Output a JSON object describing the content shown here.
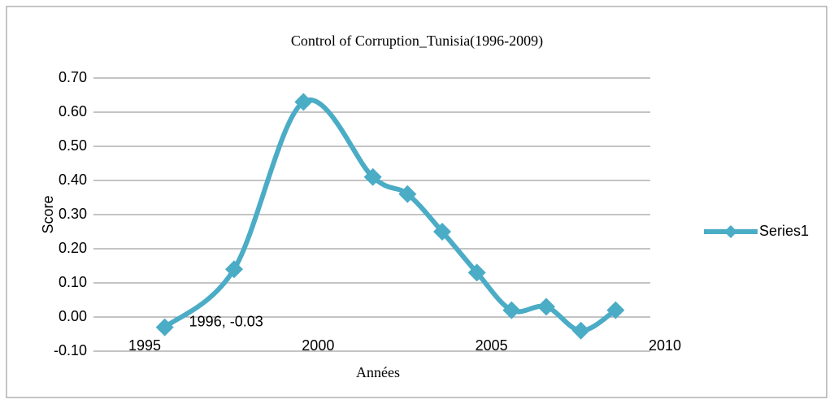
{
  "chart_data": {
    "type": "line",
    "title": "Control of Corruption_Tunisia(1996-2009)",
    "x_label": "Années",
    "y_label": "Score",
    "x": [
      1996,
      1998,
      2000,
      2002,
      2003,
      2004,
      2005,
      2006,
      2007,
      2008,
      2009
    ],
    "series": [
      {
        "name": "Series1",
        "color": "#4bacc6",
        "values": [
          -0.03,
          0.14,
          0.63,
          0.41,
          0.36,
          0.25,
          0.13,
          0.02,
          0.03,
          -0.04,
          0.02
        ],
        "value_labels": [
          "1996, -0.03",
          null,
          null,
          null,
          null,
          null,
          null,
          null,
          null,
          null,
          null
        ]
      }
    ],
    "xlim": [
      1995,
      2010
    ],
    "xticks": [
      1995,
      2000,
      2005,
      2010
    ],
    "ylim": [
      -0.1,
      0.7
    ],
    "yticks": [
      {
        "value": -0.1,
        "label": "-0.10"
      },
      {
        "value": 0,
        "label": "0.00"
      },
      {
        "value": 0.1,
        "label": "0.10"
      },
      {
        "value": 0.2,
        "label": "0.20"
      },
      {
        "value": 0.3,
        "label": "0.30"
      },
      {
        "value": 0.4,
        "label": "0.40"
      },
      {
        "value": 0.5,
        "label": "0.50"
      },
      {
        "value": 0.6,
        "label": "0.60"
      },
      {
        "value": 0.7,
        "label": "0.70"
      }
    ],
    "grid": true,
    "smooth": true,
    "legend": "right"
  }
}
